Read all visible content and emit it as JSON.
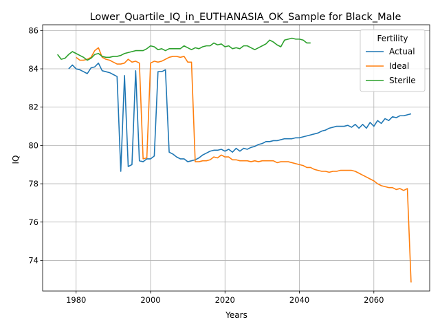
{
  "chart_data": {
    "type": "line",
    "title": "Lower_Quartile_IQ_in_EUTHANASIA_OK_Sample for Black_Male",
    "xlabel": "Years",
    "ylabel": "IQ",
    "xlim": [
      1971,
      2075
    ],
    "ylim": [
      72.4,
      86.3
    ],
    "xticks": [
      1980,
      2000,
      2020,
      2040,
      2060
    ],
    "yticks": [
      74,
      76,
      78,
      80,
      82,
      84,
      86
    ],
    "grid": true,
    "legend": {
      "title": "Fertility",
      "placement": "top-right"
    },
    "series": [
      {
        "name": "Actual",
        "color": "#1f77b4",
        "x": [
          1978,
          1979,
          1980,
          1981,
          1982,
          1983,
          1984,
          1985,
          1986,
          1987,
          1988,
          1989,
          1990,
          1991,
          1992,
          1993,
          1994,
          1995,
          1996,
          1997,
          1998,
          1999,
          2000,
          2001,
          2002,
          2003,
          2004,
          2005,
          2006,
          2007,
          2008,
          2009,
          2010,
          2011,
          2012,
          2013,
          2014,
          2015,
          2016,
          2017,
          2018,
          2019,
          2020,
          2021,
          2022,
          2023,
          2024,
          2025,
          2026,
          2027,
          2028,
          2029,
          2030,
          2031,
          2032,
          2033,
          2034,
          2035,
          2036,
          2037,
          2038,
          2039,
          2040,
          2041,
          2042,
          2043,
          2044,
          2045,
          2046,
          2047,
          2048,
          2049,
          2050,
          2051,
          2052,
          2053,
          2054,
          2055,
          2056,
          2057,
          2058,
          2059,
          2060,
          2061,
          2062,
          2063,
          2064,
          2065,
          2066,
          2067,
          2068,
          2069,
          2070
        ],
        "y": [
          84.0,
          84.2,
          84.0,
          83.95,
          83.85,
          83.75,
          84.05,
          84.1,
          84.3,
          83.9,
          83.85,
          83.8,
          83.7,
          83.6,
          78.65,
          83.65,
          78.9,
          79.0,
          83.9,
          79.2,
          79.15,
          79.3,
          79.3,
          79.45,
          83.85,
          83.85,
          83.95,
          79.65,
          79.55,
          79.4,
          79.3,
          79.3,
          79.15,
          79.2,
          79.25,
          79.35,
          79.5,
          79.6,
          79.7,
          79.75,
          79.75,
          79.8,
          79.7,
          79.8,
          79.65,
          79.85,
          79.7,
          79.85,
          79.8,
          79.9,
          79.95,
          80.05,
          80.1,
          80.2,
          80.2,
          80.25,
          80.25,
          80.3,
          80.35,
          80.35,
          80.35,
          80.4,
          80.4,
          80.45,
          80.5,
          80.55,
          80.6,
          80.65,
          80.75,
          80.8,
          80.9,
          80.95,
          81.0,
          81.0,
          81.0,
          81.05,
          80.95,
          81.1,
          80.9,
          81.1,
          80.9,
          81.2,
          81.0,
          81.3,
          81.15,
          81.4,
          81.3,
          81.5,
          81.45,
          81.55,
          81.55,
          81.6,
          81.65
        ]
      },
      {
        "name": "Ideal",
        "color": "#ff7f0e",
        "x": [
          1980,
          1981,
          1982,
          1983,
          1984,
          1985,
          1986,
          1987,
          1988,
          1989,
          1990,
          1991,
          1992,
          1993,
          1994,
          1995,
          1996,
          1997,
          1998,
          1999,
          2000,
          2001,
          2002,
          2003,
          2004,
          2005,
          2006,
          2007,
          2008,
          2009,
          2010,
          2011,
          2012,
          2013,
          2014,
          2015,
          2016,
          2017,
          2018,
          2019,
          2020,
          2021,
          2022,
          2023,
          2024,
          2025,
          2026,
          2027,
          2028,
          2029,
          2030,
          2031,
          2032,
          2033,
          2034,
          2035,
          2036,
          2037,
          2038,
          2039,
          2040,
          2041,
          2042,
          2043,
          2044,
          2045,
          2046,
          2047,
          2048,
          2049,
          2050,
          2051,
          2052,
          2053,
          2054,
          2055,
          2056,
          2057,
          2058,
          2059,
          2060,
          2061,
          2062,
          2063,
          2064,
          2065,
          2066,
          2067,
          2068,
          2069,
          2070
        ],
        "y": [
          84.6,
          84.45,
          84.45,
          84.5,
          84.6,
          84.95,
          85.1,
          84.6,
          84.5,
          84.45,
          84.35,
          84.25,
          84.25,
          84.3,
          84.5,
          84.35,
          84.4,
          84.3,
          79.3,
          79.35,
          84.3,
          84.4,
          84.35,
          84.4,
          84.5,
          84.6,
          84.65,
          84.65,
          84.6,
          84.65,
          84.35,
          84.35,
          79.15,
          79.15,
          79.2,
          79.2,
          79.25,
          79.4,
          79.35,
          79.5,
          79.4,
          79.4,
          79.25,
          79.25,
          79.2,
          79.2,
          79.2,
          79.15,
          79.2,
          79.15,
          79.2,
          79.2,
          79.2,
          79.2,
          79.1,
          79.15,
          79.15,
          79.15,
          79.1,
          79.05,
          79.0,
          78.95,
          78.85,
          78.85,
          78.75,
          78.7,
          78.65,
          78.65,
          78.6,
          78.65,
          78.65,
          78.7,
          78.7,
          78.7,
          78.7,
          78.65,
          78.55,
          78.45,
          78.35,
          78.25,
          78.15,
          78.0,
          77.9,
          77.85,
          77.8,
          77.8,
          77.7,
          77.75,
          77.65,
          77.75,
          72.85
        ]
      },
      {
        "name": "Sterile",
        "color": "#2ca02c",
        "x": [
          1975,
          1976,
          1977,
          1978,
          1979,
          1980,
          1981,
          1982,
          1983,
          1984,
          1985,
          1986,
          1987,
          1988,
          1989,
          1990,
          1991,
          1992,
          1993,
          1994,
          1995,
          1996,
          1997,
          1998,
          1999,
          2000,
          2001,
          2002,
          2003,
          2004,
          2005,
          2006,
          2007,
          2008,
          2009,
          2010,
          2011,
          2012,
          2013,
          2014,
          2015,
          2016,
          2017,
          2018,
          2019,
          2020,
          2021,
          2022,
          2023,
          2024,
          2025,
          2026,
          2027,
          2028,
          2029,
          2030,
          2031,
          2032,
          2033,
          2034,
          2035,
          2036,
          2037,
          2038,
          2039,
          2040,
          2041,
          2042,
          2043
        ],
        "y": [
          84.75,
          84.5,
          84.55,
          84.75,
          84.9,
          84.8,
          84.7,
          84.6,
          84.45,
          84.55,
          84.75,
          84.8,
          84.65,
          84.6,
          84.6,
          84.65,
          84.65,
          84.7,
          84.8,
          84.85,
          84.9,
          84.95,
          84.95,
          84.95,
          85.05,
          85.2,
          85.15,
          85.0,
          85.05,
          84.95,
          85.05,
          85.05,
          85.05,
          85.05,
          85.2,
          85.1,
          85.0,
          85.1,
          85.05,
          85.15,
          85.2,
          85.2,
          85.35,
          85.25,
          85.3,
          85.15,
          85.2,
          85.05,
          85.1,
          85.05,
          85.2,
          85.2,
          85.1,
          85.0,
          85.1,
          85.2,
          85.3,
          85.5,
          85.4,
          85.25,
          85.15,
          85.5,
          85.55,
          85.6,
          85.55,
          85.55,
          85.5,
          85.35,
          85.35
        ]
      }
    ]
  }
}
